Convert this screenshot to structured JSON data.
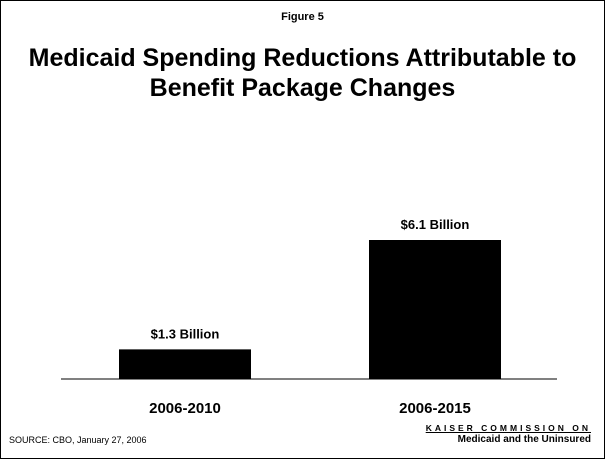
{
  "figure_label": "Figure 5",
  "title_line1": "Medicaid Spending Reductions Attributable to",
  "title_line2": "Benefit Package Changes",
  "source": "SOURCE: CBO, January 27, 2006",
  "logo": {
    "line1": "KAISER COMMISSION ON",
    "line2": "Medicaid and the Uninsured"
  },
  "colors": {
    "bar": "#000000",
    "axis": "#000000",
    "background": "#ffffff"
  },
  "chart_data": {
    "type": "bar",
    "title": "Medicaid Spending Reductions Attributable to Benefit Package Changes",
    "categories": [
      "2006-2010",
      "2006-2015"
    ],
    "values": [
      1.3,
      6.1
    ],
    "data_labels": [
      "$1.3 Billion",
      "$6.1 Billion"
    ],
    "unit": "Billion",
    "xlabel": "",
    "ylabel": "",
    "ylim": [
      0,
      6.1
    ],
    "grid": false,
    "legend": "none"
  }
}
